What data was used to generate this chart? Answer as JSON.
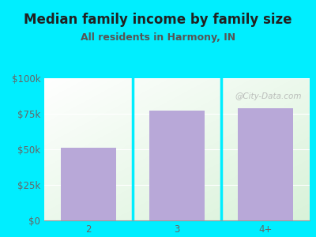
{
  "title": "Median family income by family size",
  "subtitle": "All residents in Harmony, IN",
  "categories": [
    "2",
    "3",
    "4+"
  ],
  "values": [
    51000,
    77000,
    79000
  ],
  "bar_color": "#b8a8d8",
  "background_outer": "#00eeff",
  "title_color": "#212121",
  "subtitle_color": "#555555",
  "tick_label_color": "#666666",
  "ytick_labels": [
    "$0",
    "$25k",
    "$50k",
    "$75k",
    "$100k"
  ],
  "ytick_values": [
    0,
    25000,
    50000,
    75000,
    100000
  ],
  "ylim": [
    0,
    100000
  ],
  "watermark": "@City-Data.com",
  "title_fontsize": 12,
  "subtitle_fontsize": 9,
  "tick_fontsize": 8.5
}
